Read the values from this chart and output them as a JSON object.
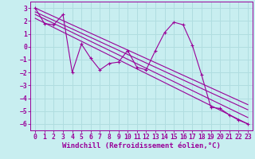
{
  "bg_color": "#c8eef0",
  "line_color": "#990099",
  "grid_color": "#b0dde0",
  "xlabel": "Windchill (Refroidissement éolien,°C)",
  "xlabel_fontsize": 6.5,
  "tick_fontsize": 5.8,
  "xlim": [
    -0.5,
    23.5
  ],
  "ylim": [
    -6.5,
    3.5
  ],
  "yticks": [
    -6,
    -5,
    -4,
    -3,
    -2,
    -1,
    0,
    1,
    2,
    3
  ],
  "xticks": [
    0,
    1,
    2,
    3,
    4,
    5,
    6,
    7,
    8,
    9,
    10,
    11,
    12,
    13,
    14,
    15,
    16,
    17,
    18,
    19,
    20,
    21,
    22,
    23
  ],
  "series1_x": [
    0,
    1,
    2,
    3,
    4,
    5,
    6,
    7,
    8,
    9,
    10,
    11,
    12,
    13,
    14,
    15,
    16,
    17,
    18,
    19,
    20,
    21,
    22,
    23
  ],
  "series1_y": [
    3.0,
    1.8,
    1.7,
    2.5,
    -2.0,
    0.2,
    -0.9,
    -1.8,
    -1.3,
    -1.2,
    -0.3,
    -1.6,
    -1.8,
    -0.3,
    1.1,
    1.9,
    1.7,
    0.1,
    -2.2,
    -4.7,
    -4.8,
    -5.3,
    -5.7,
    -6.0
  ],
  "trend1_x": [
    0,
    23
  ],
  "trend1_y": [
    3.0,
    -4.5
  ],
  "trend2_x": [
    0,
    23
  ],
  "trend2_y": [
    2.7,
    -4.9
  ],
  "trend3_x": [
    0,
    23
  ],
  "trend3_y": [
    2.5,
    -5.5
  ],
  "trend4_x": [
    0,
    23
  ],
  "trend4_y": [
    2.2,
    -6.0
  ]
}
